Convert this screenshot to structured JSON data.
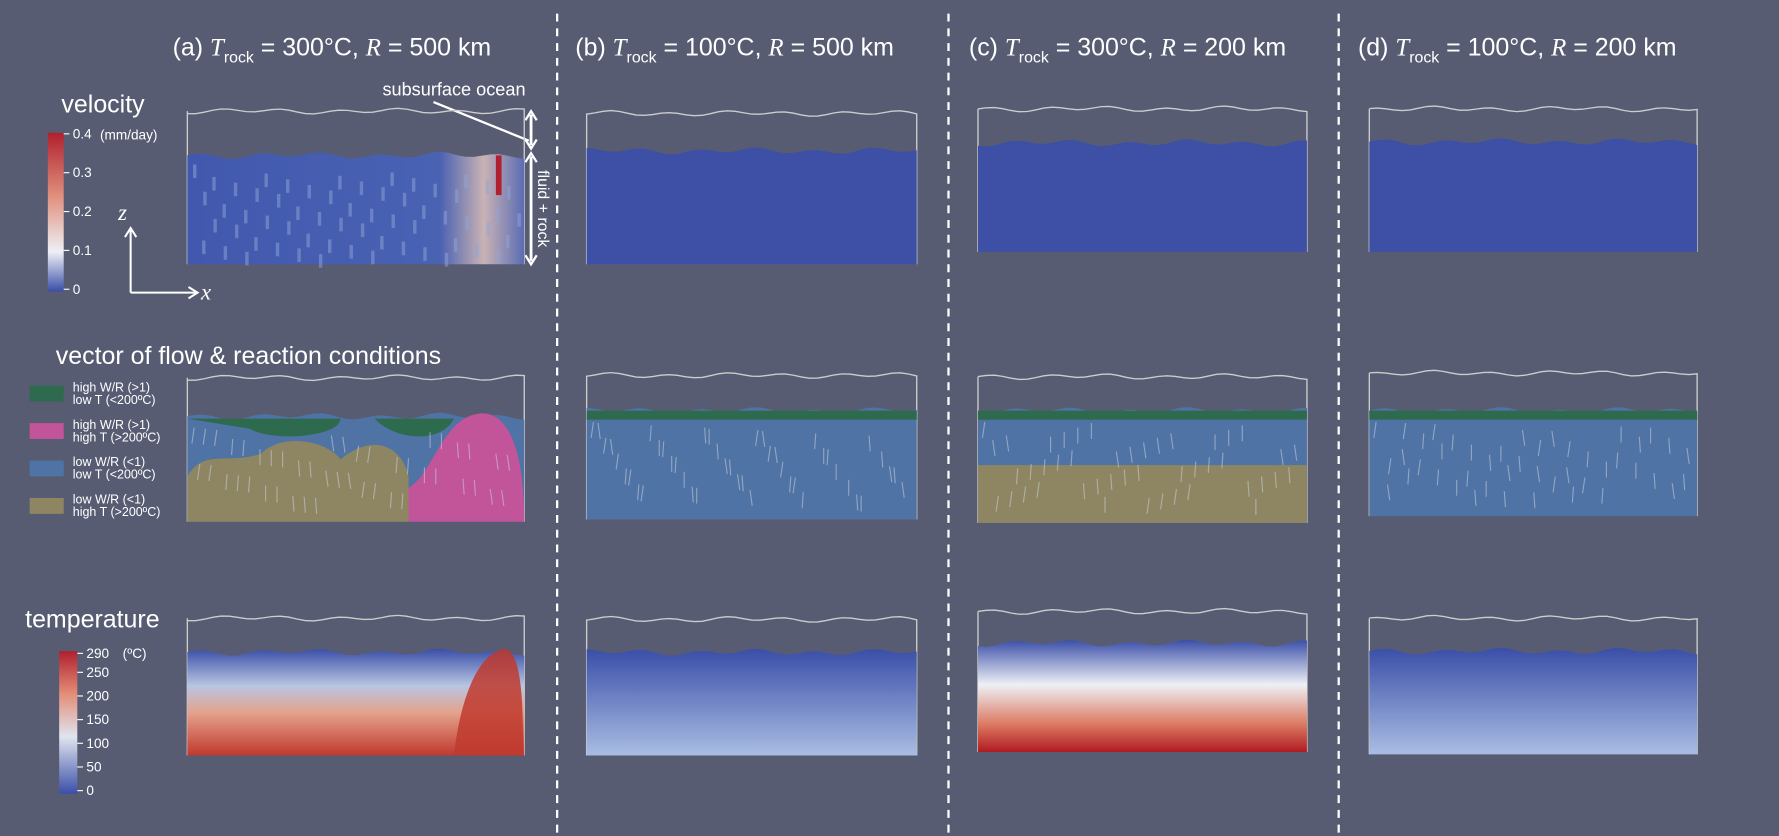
{
  "panels": [
    {
      "title": [
        "(a) ",
        "T",
        "rock",
        " = 300°C, ",
        "R",
        " = 500 km"
      ]
    },
    {
      "title": [
        "(b) ",
        "T",
        "rock",
        " = 100°C, ",
        "R",
        " = 500 km"
      ]
    },
    {
      "title": [
        "(c) ",
        "T",
        "rock",
        " = 300°C, ",
        "R",
        " = 200 km"
      ]
    },
    {
      "title": [
        "(d) ",
        "T",
        "rock",
        " = 100°C, ",
        "R",
        " = 200 km"
      ]
    }
  ],
  "rows": {
    "velocity": "velocity",
    "vector": "vector of flow & reaction conditions",
    "temperature": "temperature"
  },
  "annotations": {
    "ocean": "subsurface ocean",
    "fluid": "fluid + rock",
    "z": "z",
    "x": "x"
  },
  "velocity_colorbar": {
    "unit": "(mm/day)",
    "lim": [
      0,
      0.4
    ],
    "ticks": [
      0,
      0.1,
      0.2,
      0.3,
      0.4
    ]
  },
  "temperature_colorbar": {
    "unit": "(ºC)",
    "lim": [
      0,
      290
    ],
    "ticks": [
      0,
      50,
      100,
      150,
      200,
      250,
      290
    ]
  },
  "legend": [
    {
      "lines": [
        "high W/R (>1)",
        "low T (<200ºC)"
      ],
      "color": "#2e6a4e",
      "text_color": "#5fc46c"
    },
    {
      "lines": [
        "high W/R (>1)",
        "high T (>200ºC)"
      ],
      "color": "#c2549a",
      "text_color": "#e283c6"
    },
    {
      "lines": [
        "low W/R (<1)",
        "low T (<200ºC)"
      ],
      "color": "#4f73a4",
      "text_color": "#5ab8ea"
    },
    {
      "lines": [
        "low W/R (<1)",
        "high T (>200ºC)"
      ],
      "color": "#8e8663",
      "text_color": "#e8d84a"
    }
  ]
}
